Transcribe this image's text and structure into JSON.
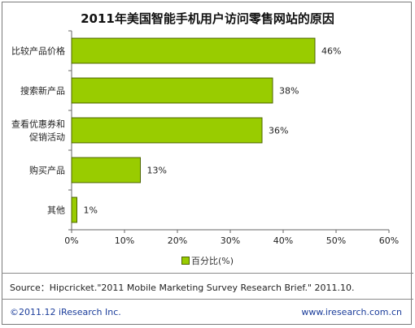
{
  "chart_data": {
    "type": "bar",
    "orientation": "horizontal",
    "title": "2011年美国智能手机用户访问零售网站的原因",
    "categories": [
      "比较产品价格",
      "搜索新产品",
      "查看优惠券和促销活动",
      "购买产品",
      "其他"
    ],
    "category_label_lines": [
      [
        "比较产品价格"
      ],
      [
        "搜索新产品"
      ],
      [
        "查看优惠券和",
        "促销活动"
      ],
      [
        "购买产品"
      ],
      [
        "其他"
      ]
    ],
    "series": [
      {
        "name": "百分比(%)",
        "values": [
          46,
          38,
          36,
          13,
          1
        ]
      }
    ],
    "data_labels": [
      "46%",
      "38%",
      "36%",
      "13%",
      "1%"
    ],
    "xlim": [
      0,
      60
    ],
    "x_ticks": [
      0,
      10,
      20,
      30,
      40,
      50,
      60
    ],
    "x_tick_labels": [
      "0%",
      "10%",
      "20%",
      "30%",
      "40%",
      "50%",
      "60%"
    ],
    "grid": false,
    "legend_position": "bottom",
    "colors": {
      "bar_fill": "#99cc00",
      "bar_stroke": "#4d6600"
    }
  },
  "source_text": "Source：Hipcricket.\"2011 Mobile Marketing Survey Research Brief.\" 2011.10.",
  "footer": {
    "copyright": "©2011.12 iResearch Inc.",
    "website": "www.iresearch.com.cn"
  }
}
